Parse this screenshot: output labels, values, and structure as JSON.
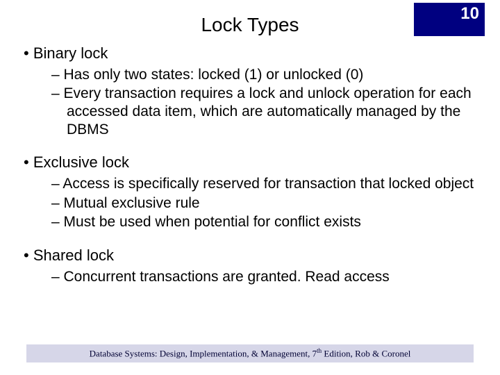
{
  "page_number": "10",
  "title": "Lock Types",
  "colors": {
    "page_number_bg": "#000080",
    "page_number_fg": "#ffffff",
    "footer_bg": "#d6d6e8",
    "text": "#000000",
    "background": "#ffffff"
  },
  "typography": {
    "title_fontsize": 28,
    "body_fontsize": 22,
    "sub_fontsize": 21,
    "footer_fontsize": 13,
    "page_number_fontsize": 24
  },
  "bullets": [
    {
      "label": "Binary lock",
      "items": [
        "Has only two states: locked (1) or unlocked (0)",
        "Every transaction requires a lock and unlock operation for each accessed data item, which are automatically managed by the DBMS"
      ]
    },
    {
      "label": "Exclusive lock",
      "items": [
        "Access is specifically reserved for transaction that locked object",
        "Mutual exclusive rule",
        "Must be used when potential for conflict exists"
      ]
    },
    {
      "label": "Shared lock",
      "items": [
        "Concurrent transactions are granted. Read access"
      ]
    }
  ],
  "footer_prefix": "Database Systems: Design, Implementation, & Management, 7",
  "footer_super": "th",
  "footer_suffix": " Edition, Rob & Coronel"
}
